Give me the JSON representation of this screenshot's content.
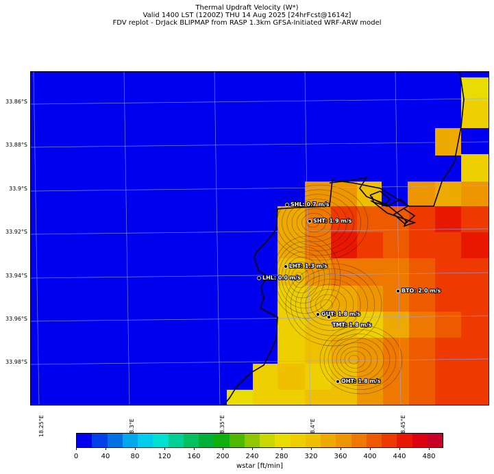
{
  "title": {
    "line1": "Thermal Updraft Velocity (W*)",
    "line2": "Valid 1400 LST (1200Z) THU 14 Aug 2025 [24hrFcst@1614z]",
    "line3": "FDV replot - DrJack BLIPMAP from RASP 1.3km GFSA-Initiated WRF-ARW model"
  },
  "map": {
    "lat_labels": [
      "33.86°S",
      "33.88°S",
      "33.9°S",
      "33.92°S",
      "33.94°S",
      "33.96°S",
      "33.98°S"
    ],
    "lon_labels": [
      "18.25°E",
      "18.3°E",
      "18.35°E",
      "18.4°E",
      "18.45°E"
    ],
    "lat_values": [
      -33.86,
      -33.88,
      -33.9,
      -33.92,
      -33.94,
      -33.96,
      -33.98
    ],
    "lon_values": [
      18.25,
      18.3,
      18.35,
      18.4,
      18.45
    ],
    "background_color": "#0000ee",
    "coastline_color": "#000000",
    "gridline_color": "#9aa6ff"
  },
  "sites": [
    {
      "label": "SHL: 0.7 m/s",
      "code": "SHL",
      "value_ms": 0.7
    },
    {
      "label": "SHT: 1.9 m/s",
      "code": "SHT",
      "value_ms": 1.9
    },
    {
      "label": "LHT: 1.3 m/s",
      "code": "LHT",
      "value_ms": 1.3
    },
    {
      "label": "LHL: 0.0 m/s",
      "code": "LHL",
      "value_ms": 0.0
    },
    {
      "label": "BTO: 2.0 m/s",
      "code": "BTO",
      "value_ms": 2.0
    },
    {
      "label": "GUT: 1.8 m/s",
      "code": "GUT",
      "value_ms": 1.8
    },
    {
      "label": "TMT: 1.8 m/s",
      "code": "TMT",
      "value_ms": 1.8
    },
    {
      "label": "OHT: 1.8 m/s",
      "code": "OHT",
      "value_ms": 1.8
    }
  ],
  "colorbar": {
    "label": "wstar [ft/min]",
    "ticks": [
      "0",
      "40",
      "80",
      "120",
      "160",
      "200",
      "240",
      "280",
      "320",
      "360",
      "400",
      "440",
      "480"
    ],
    "range": [
      0,
      500
    ],
    "colors": [
      "#0000ee",
      "#0040e8",
      "#0070e2",
      "#00a8ec",
      "#00ccec",
      "#00e0d0",
      "#00d098",
      "#00c060",
      "#00b038",
      "#10b010",
      "#50b800",
      "#90c800",
      "#c8d800",
      "#e8dc00",
      "#eed000",
      "#eec000",
      "#eeaa00",
      "#ee9600",
      "#ee7800",
      "#ee5a00",
      "#ee3a00",
      "#e81800",
      "#dc0010",
      "#c80028"
    ]
  }
}
